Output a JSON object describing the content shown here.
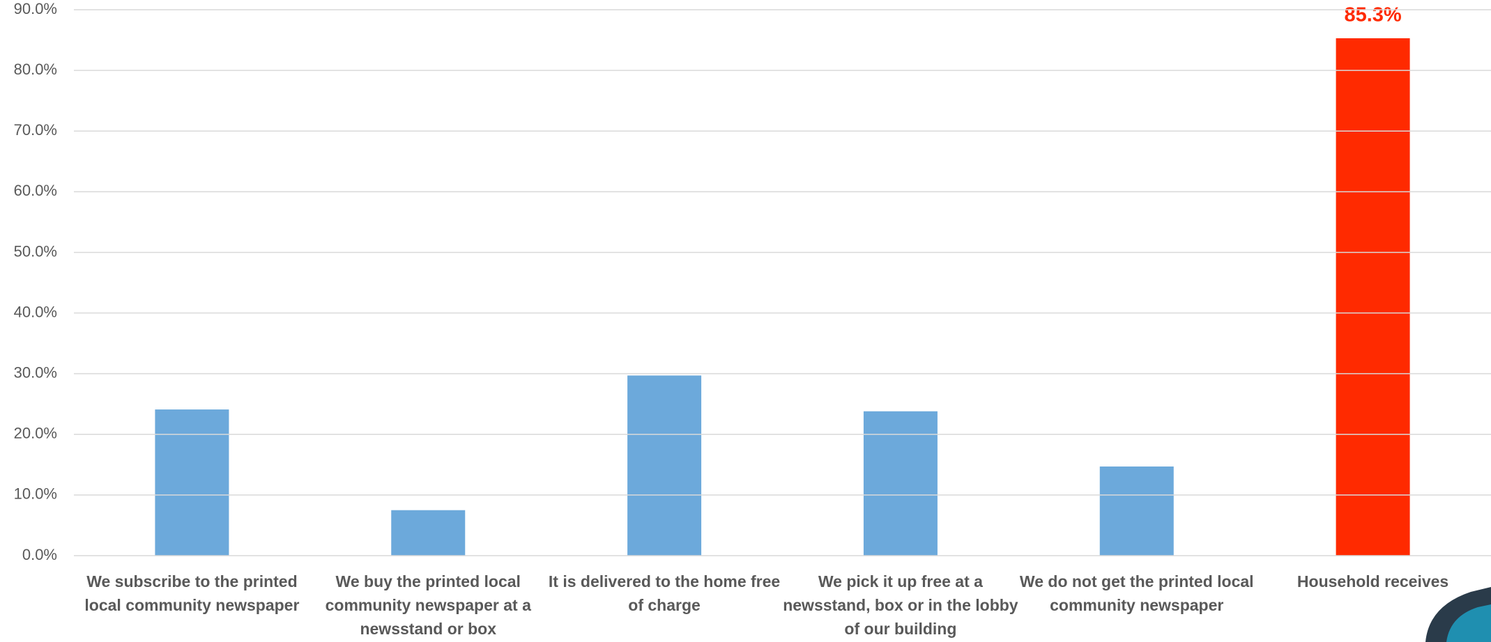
{
  "chart_data": {
    "type": "bar",
    "categories": [
      "We subscribe to the printed local community newspaper",
      "We buy the printed local community newspaper at a newsstand or box",
      "It is delivered to the home free of charge",
      "We pick it up free at a newsstand, box or in the lobby of our building",
      "We do not get the printed local community newspaper",
      "Household receives"
    ],
    "values": [
      24.1,
      7.5,
      29.7,
      23.8,
      14.7,
      85.3
    ],
    "value_labels": [
      null,
      null,
      null,
      null,
      null,
      "85.3%"
    ],
    "colors": [
      "#6CA9DB",
      "#6CA9DB",
      "#6CA9DB",
      "#6CA9DB",
      "#6CA9DB",
      "#FF2A00"
    ],
    "ylim": [
      0,
      90
    ],
    "yticks": [
      {
        "value": 0,
        "label": "0.0%"
      },
      {
        "value": 10,
        "label": "10.0%"
      },
      {
        "value": 20,
        "label": "20.0%"
      },
      {
        "value": 30,
        "label": "30.0%"
      },
      {
        "value": 40,
        "label": "40.0%"
      },
      {
        "value": 50,
        "label": "50.0%"
      },
      {
        "value": 60,
        "label": "60.0%"
      },
      {
        "value": 70,
        "label": "70.0%"
      },
      {
        "value": 80,
        "label": "80.0%"
      },
      {
        "value": 90,
        "label": "90.0%"
      }
    ],
    "grid": true
  }
}
